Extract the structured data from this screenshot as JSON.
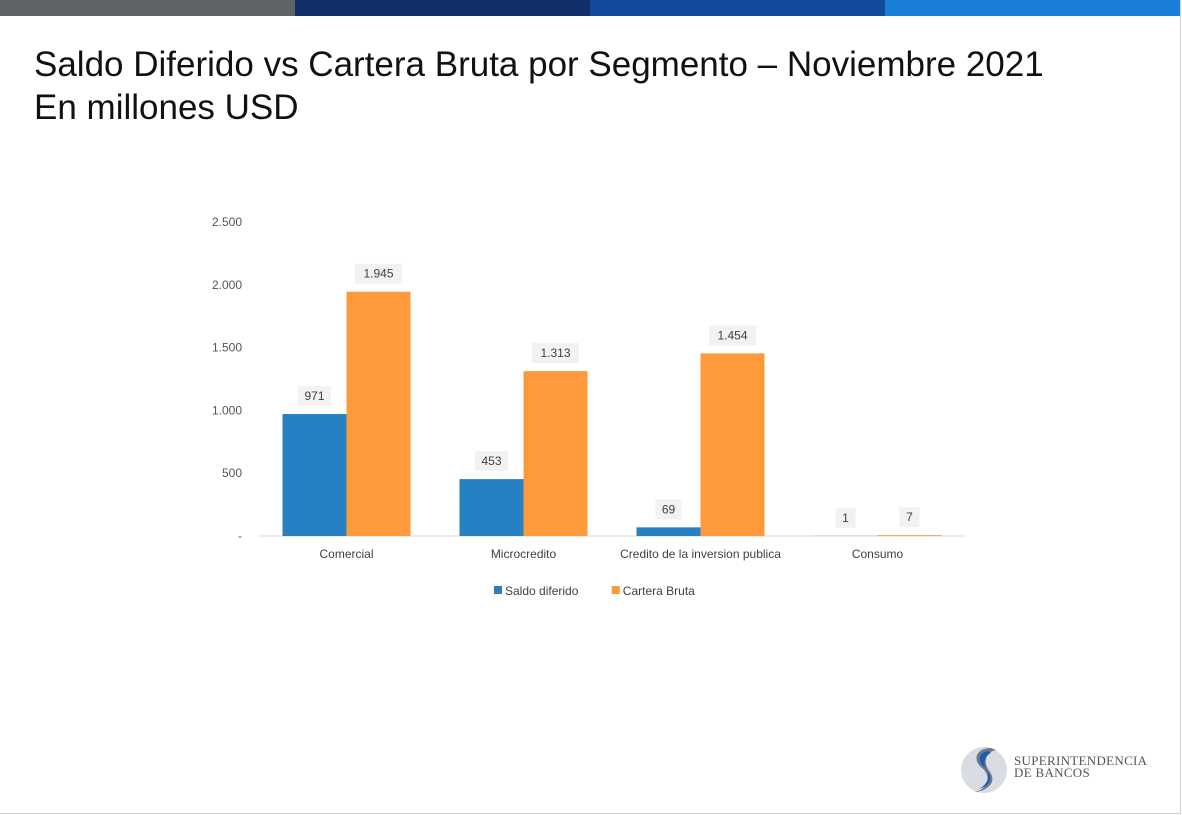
{
  "slide": {
    "title_line1": "Saldo Diferido vs Cartera Bruta por Segmento – Noviembre 2021",
    "title_line2": "En millones USD",
    "topbar_colors": [
      "#5f6266",
      "#0f2f66",
      "#124a9c",
      "#1b7ed8"
    ]
  },
  "logo": {
    "line1": "SUPERINTENDENCIA",
    "line2": "DE BANCOS"
  },
  "chart_data": {
    "type": "bar",
    "categories": [
      "Comercial",
      "Microcredito",
      "Credito de la inversion publica",
      "Consumo"
    ],
    "series": [
      {
        "name": "Saldo diferido",
        "values": [
          971,
          453,
          69,
          1
        ],
        "labels": [
          "971",
          "453",
          "69",
          "1"
        ],
        "color": "#2680c2"
      },
      {
        "name": "Cartera Bruta",
        "values": [
          1945,
          1313,
          1454,
          7
        ],
        "labels": [
          "1.945",
          "1.313",
          "1.454",
          "7"
        ],
        "color": "#ff9a3c"
      }
    ],
    "ylim": [
      0,
      2500
    ],
    "yticks": [
      0,
      500,
      1000,
      1500,
      2000,
      2500
    ],
    "ytick_labels": [
      "-",
      "500",
      "1.000",
      "1.500",
      "2.000",
      "2.500"
    ],
    "grid": false,
    "legend_position": "bottom"
  }
}
